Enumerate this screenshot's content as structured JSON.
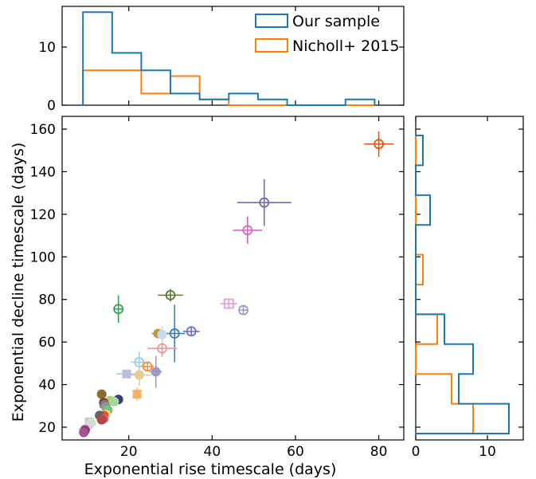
{
  "chart_data": [
    {
      "id": "scatter",
      "type": "scatter",
      "xlabel": "Exponential rise timescale (days)",
      "ylabel": "Exponential decline timescale (days)",
      "xlim": [
        4,
        86
      ],
      "ylim": [
        14,
        166
      ],
      "xticks": [
        20,
        40,
        60,
        80
      ],
      "yticks": [
        20,
        40,
        60,
        80,
        100,
        120,
        140,
        160
      ],
      "grid": false,
      "series": [
        {
          "marker": "open-circle-plus",
          "points": [
            {
              "x": 80,
              "y": 153,
              "xerr": 3.5,
              "yerr": 6,
              "color": "#e6550d"
            },
            {
              "x": 52.5,
              "y": 125.5,
              "xerr": 6.5,
              "yerr": 11,
              "color": "#756bb1"
            },
            {
              "x": 48.5,
              "y": 112.5,
              "xerr": 3.5,
              "yerr": 6.5,
              "color": "#ce6dbd"
            },
            {
              "x": 30,
              "y": 82,
              "xerr": 3,
              "yerr": 3,
              "color": "#637939"
            },
            {
              "x": 17.5,
              "y": 75.5,
              "xerr": 0.5,
              "yerr": 6.5,
              "color": "#31a354"
            },
            {
              "x": 47.5,
              "y": 75,
              "xerr": 0.5,
              "yerr": 1.5,
              "color": "#9e9ac8"
            },
            {
              "x": 35,
              "y": 65,
              "xerr": 2,
              "yerr": 1,
              "color": "#6b6ecf"
            },
            {
              "x": 31,
              "y": 64,
              "xerr": 2.5,
              "yerr": 13.5,
              "color": "#3182bd"
            },
            {
              "x": 28,
              "y": 57,
              "xerr": 3.5,
              "yerr": 4,
              "color": "#e7969c"
            },
            {
              "x": 22.5,
              "y": 50.5,
              "xerr": 2,
              "yerr": 5,
              "color": "#9ecae1"
            },
            {
              "x": 24.5,
              "y": 48.5,
              "xerr": 1.5,
              "yerr": 1.5,
              "color": "#fd8d3c"
            }
          ]
        },
        {
          "marker": "open-square-plus",
          "points": [
            {
              "x": 44,
              "y": 78,
              "xerr": 2,
              "yerr": 2.5,
              "color": "#de9ed6"
            }
          ]
        },
        {
          "marker": "filled-circle",
          "points": [
            {
              "x": 27,
              "y": 64,
              "xerr": 1.5,
              "yerr": 1,
              "color": "#bd9e39"
            },
            {
              "x": 28,
              "y": 63.5,
              "xerr": 0.5,
              "yerr": 4,
              "color": "#c6dbef"
            },
            {
              "x": 26.5,
              "y": 46,
              "xerr": 1.5,
              "yerr": 7.5,
              "color": "#9e9ac8"
            },
            {
              "x": 22.5,
              "y": 44.5,
              "xerr": 3,
              "yerr": 5,
              "color": "#e7cb94"
            },
            {
              "x": 13.5,
              "y": 35.5,
              "xerr": 0.5,
              "yerr": 1,
              "color": "#8c6d31"
            },
            {
              "x": 17.5,
              "y": 33,
              "xerr": 0.5,
              "yerr": 1,
              "color": "#393b79"
            },
            {
              "x": 15.5,
              "y": 32.5,
              "xerr": 0.5,
              "yerr": 1,
              "color": "#b5cf6b"
            },
            {
              "x": 16.5,
              "y": 32,
              "xerr": 0.5,
              "yerr": 1,
              "color": "#a1d99b"
            },
            {
              "x": 14,
              "y": 31.5,
              "xerr": 0.5,
              "yerr": 1,
              "color": "#843c39"
            },
            {
              "x": 14.2,
              "y": 30.5,
              "xerr": 0.5,
              "yerr": 1,
              "color": "#7b7b7b"
            },
            {
              "x": 14.5,
              "y": 29.5,
              "xerr": 0.5,
              "yerr": 1,
              "color": "#969696"
            },
            {
              "x": 15,
              "y": 28,
              "xerr": 0.5,
              "yerr": 1,
              "color": "#74c476"
            },
            {
              "x": 14.5,
              "y": 26,
              "xerr": 0.5,
              "yerr": 1,
              "color": "#fdd0a2"
            },
            {
              "x": 14,
              "y": 25.5,
              "xerr": 1.5,
              "yerr": 1,
              "color": "#e6550d"
            },
            {
              "x": 13,
              "y": 25.5,
              "xerr": 0.5,
              "yerr": 1,
              "color": "#636363"
            },
            {
              "x": 14,
              "y": 24,
              "xerr": 0.5,
              "yerr": 1,
              "color": "#d6616b"
            },
            {
              "x": 13.5,
              "y": 23.5,
              "xerr": 0.5,
              "yerr": 1,
              "color": "#ad494a"
            },
            {
              "x": 11,
              "y": 22,
              "xerr": 0.5,
              "yerr": 1,
              "color": "#c7e9c0"
            },
            {
              "x": 10.5,
              "y": 21,
              "xerr": 0.5,
              "yerr": 1,
              "color": "#d9d9d9"
            },
            {
              "x": 9.5,
              "y": 19,
              "xerr": 1.5,
              "yerr": 1,
              "color": "#e377c2"
            },
            {
              "x": 9.5,
              "y": 18.5,
              "xerr": 0.5,
              "yerr": 1,
              "color": "#7b4173"
            },
            {
              "x": 9.2,
              "y": 17.5,
              "xerr": 0.5,
              "yerr": 1,
              "color": "#a55194"
            }
          ]
        },
        {
          "marker": "filled-square",
          "points": [
            {
              "x": 19.5,
              "y": 45,
              "xerr": 2.5,
              "yerr": 2,
              "color": "#bcbddc"
            },
            {
              "x": 22,
              "y": 35.5,
              "xerr": 1,
              "yerr": 3,
              "color": "#fdae6b"
            },
            {
              "x": 14,
              "y": 31,
              "xerr": 0.5,
              "yerr": 1,
              "color": "#9c9ede"
            },
            {
              "x": 10.5,
              "y": 22.5,
              "xerr": 0.5,
              "yerr": 1,
              "color": "#c7c7c7"
            }
          ]
        }
      ]
    },
    {
      "id": "hist-top",
      "type": "histogram",
      "orientation": "vertical",
      "xlim": [
        4,
        86
      ],
      "ylim": [
        0,
        17
      ],
      "yticks": [
        0,
        10
      ],
      "legend_position": "top-right",
      "series": [
        {
          "name": "Our sample",
          "color": "#1f77b4",
          "edges": [
            9,
            16,
            23,
            30,
            37,
            44,
            51,
            58,
            65,
            72,
            79
          ],
          "counts": [
            16,
            9,
            6,
            2,
            1,
            2,
            1,
            0,
            0,
            1
          ]
        },
        {
          "name": "Nicholl+ 2015",
          "color": "#ff7f0e",
          "edges": [
            9,
            23,
            30,
            37,
            44,
            51,
            58,
            65,
            72,
            79
          ],
          "counts": [
            6,
            2,
            5,
            1,
            0,
            0,
            0,
            0,
            0
          ]
        }
      ]
    },
    {
      "id": "hist-right",
      "type": "histogram",
      "orientation": "horizontal",
      "ylim": [
        14,
        166
      ],
      "xlim": [
        0,
        15
      ],
      "xticks": [
        0,
        10
      ],
      "series": [
        {
          "name": "Our sample",
          "color": "#1f77b4",
          "edges": [
            17,
            31,
            45,
            59,
            73,
            87,
            101,
            115,
            129,
            143,
            157
          ],
          "counts": [
            13,
            6,
            8,
            4,
            0,
            0,
            0,
            2,
            0,
            1
          ]
        },
        {
          "name": "Nicholl+ 2015",
          "color": "#ff7f0e",
          "edges": [
            17,
            31,
            45,
            59,
            73,
            87,
            101,
            115,
            129,
            143,
            157
          ],
          "counts": [
            8,
            5,
            0,
            3,
            0,
            1,
            0,
            0,
            0,
            0
          ]
        }
      ]
    }
  ]
}
